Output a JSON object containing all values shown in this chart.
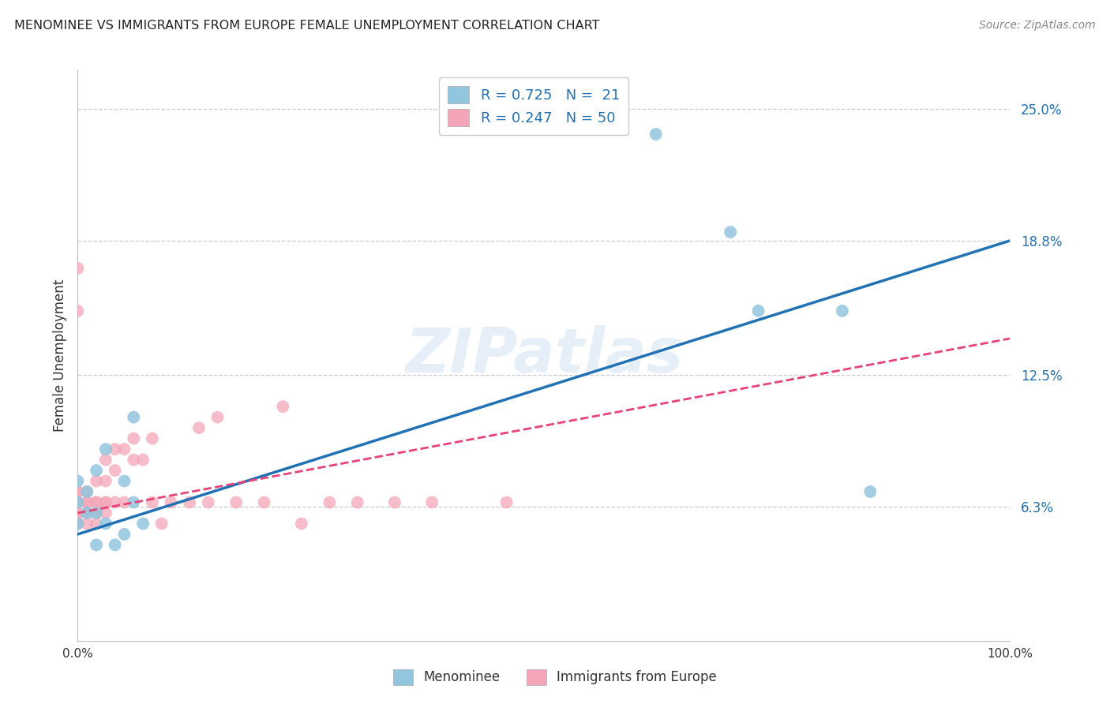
{
  "title": "MENOMINEE VS IMMIGRANTS FROM EUROPE FEMALE UNEMPLOYMENT CORRELATION CHART",
  "source": "Source: ZipAtlas.com",
  "ylabel": "Female Unemployment",
  "ytick_labels": [
    "6.3%",
    "12.5%",
    "18.8%",
    "25.0%"
  ],
  "ytick_values": [
    0.063,
    0.125,
    0.188,
    0.25
  ],
  "xlim": [
    0.0,
    1.0
  ],
  "ylim": [
    0.0,
    0.268
  ],
  "blue_color": "#92c5de",
  "pink_color": "#f4a6b8",
  "line_blue_color": "#2171b5",
  "line_pink_color": "#e8427a",
  "legend_label_1": "R = 0.725   N =  21",
  "legend_label_2": "R = 0.247   N = 50",
  "blue_line_x0": 0.0,
  "blue_line_x1": 1.0,
  "blue_line_y0": 0.05,
  "blue_line_y1": 0.188,
  "pink_line_x0": 0.0,
  "pink_line_x1": 1.0,
  "pink_line_y0": 0.06,
  "pink_line_y1": 0.142,
  "menominee_x": [
    0.0,
    0.0,
    0.0,
    0.01,
    0.01,
    0.02,
    0.02,
    0.02,
    0.03,
    0.03,
    0.04,
    0.05,
    0.05,
    0.06,
    0.06,
    0.07,
    0.62,
    0.7,
    0.73,
    0.82,
    0.85
  ],
  "menominee_y": [
    0.055,
    0.065,
    0.075,
    0.06,
    0.07,
    0.045,
    0.06,
    0.08,
    0.055,
    0.09,
    0.045,
    0.05,
    0.075,
    0.065,
    0.105,
    0.055,
    0.238,
    0.192,
    0.155,
    0.155,
    0.07
  ],
  "europe_x": [
    0.0,
    0.0,
    0.0,
    0.0,
    0.0,
    0.0,
    0.0,
    0.0,
    0.0,
    0.0,
    0.01,
    0.01,
    0.01,
    0.01,
    0.01,
    0.02,
    0.02,
    0.02,
    0.02,
    0.02,
    0.03,
    0.03,
    0.03,
    0.03,
    0.03,
    0.04,
    0.04,
    0.04,
    0.05,
    0.05,
    0.06,
    0.06,
    0.07,
    0.08,
    0.08,
    0.09,
    0.1,
    0.12,
    0.13,
    0.14,
    0.15,
    0.17,
    0.2,
    0.22,
    0.24,
    0.27,
    0.3,
    0.34,
    0.38,
    0.46
  ],
  "europe_y": [
    0.055,
    0.055,
    0.06,
    0.06,
    0.065,
    0.065,
    0.07,
    0.07,
    0.155,
    0.175,
    0.055,
    0.06,
    0.065,
    0.065,
    0.07,
    0.055,
    0.06,
    0.065,
    0.065,
    0.075,
    0.06,
    0.065,
    0.065,
    0.075,
    0.085,
    0.065,
    0.08,
    0.09,
    0.065,
    0.09,
    0.085,
    0.095,
    0.085,
    0.065,
    0.095,
    0.055,
    0.065,
    0.065,
    0.1,
    0.065,
    0.105,
    0.065,
    0.065,
    0.11,
    0.055,
    0.065,
    0.065,
    0.065,
    0.065,
    0.065
  ]
}
